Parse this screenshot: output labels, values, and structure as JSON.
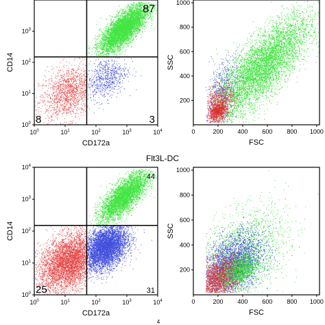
{
  "figure_caption": "Flt3L-DC",
  "footer_mark": "4",
  "colors": {
    "green": "#22e022",
    "blue": "#1f2fd6",
    "red": "#e02828"
  },
  "chart_data": [
    {
      "type": "scatter",
      "panel": "top-left",
      "xlabel": "CD172a",
      "ylabel": "CD14",
      "xscale": "log",
      "yscale": "log",
      "xlim": [
        1,
        10000
      ],
      "ylim": [
        1,
        10000
      ],
      "x_ticks": [
        "10^0",
        "10^1",
        "10^2",
        "10^3",
        "10^4"
      ],
      "y_ticks": [
        "10^0",
        "10^1",
        "10^2",
        "10^3"
      ],
      "gate": {
        "x": 50,
        "y": 150
      },
      "quadrant_labels": {
        "upper_right": "87",
        "lower_left": "8",
        "lower_right": "3"
      },
      "series": [
        {
          "color": "green",
          "quadrant": "upper-right",
          "percent": 87
        },
        {
          "color": "red",
          "quadrant": "lower-left",
          "percent": 8
        },
        {
          "color": "blue",
          "quadrant": "lower-right",
          "percent": 3
        }
      ]
    },
    {
      "type": "scatter",
      "panel": "top-right",
      "xlabel": "FSC",
      "ylabel": "SSC",
      "xlim": [
        0,
        1023
      ],
      "ylim": [
        0,
        1023
      ],
      "x_ticks": [
        "0",
        "200",
        "400",
        "600",
        "800",
        "1000"
      ],
      "y_ticks": [
        "200",
        "400",
        "600",
        "800",
        "1000"
      ],
      "series": [
        {
          "color": "green"
        },
        {
          "color": "blue"
        },
        {
          "color": "red"
        }
      ]
    },
    {
      "type": "scatter",
      "panel": "bottom-left",
      "xlabel": "CD172a",
      "ylabel": "CD14",
      "xscale": "log",
      "yscale": "log",
      "xlim": [
        1,
        10000
      ],
      "ylim": [
        1,
        10000
      ],
      "x_ticks": [
        "10^0",
        "10^1",
        "10^2",
        "10^3",
        "10^4"
      ],
      "y_ticks": [
        "10^0",
        "10^1",
        "10^2",
        "10^3",
        "10^4"
      ],
      "gate": {
        "x": 50,
        "y": 150
      },
      "quadrant_labels": {
        "upper_right": "44",
        "lower_left": "25",
        "lower_right": "31"
      },
      "series": [
        {
          "color": "green",
          "quadrant": "upper-right",
          "percent": 44
        },
        {
          "color": "red",
          "quadrant": "lower-left",
          "percent": 25
        },
        {
          "color": "blue",
          "quadrant": "lower-right",
          "percent": 31
        }
      ]
    },
    {
      "type": "scatter",
      "panel": "bottom-right",
      "xlabel": "FSC",
      "ylabel": "SSC",
      "xlim": [
        0,
        1023
      ],
      "ylim": [
        0,
        1023
      ],
      "x_ticks": [
        "0",
        "200",
        "400",
        "600",
        "800",
        "1000"
      ],
      "y_ticks": [
        "200",
        "400",
        "600",
        "800",
        "1000"
      ],
      "series": [
        {
          "color": "green"
        },
        {
          "color": "blue"
        },
        {
          "color": "red"
        }
      ]
    }
  ]
}
